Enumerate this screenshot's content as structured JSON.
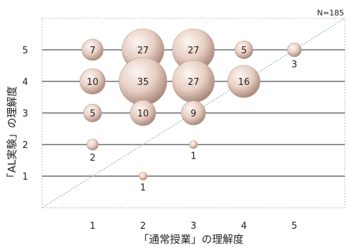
{
  "chart_data": {
    "type": "bubble",
    "note": "N=185",
    "xlabel": "「通常授業」の理解度",
    "ylabel": "「AL実験」の理解度",
    "xlim": [
      0,
      6
    ],
    "ylim": [
      0,
      6
    ],
    "x_ticks": [
      "1",
      "2",
      "3",
      "4",
      "5"
    ],
    "y_ticks": [
      "1",
      "2",
      "3",
      "4",
      "5"
    ],
    "gridlines": "horizontal",
    "diagonal_reference_line": true,
    "points": [
      {
        "x": 1,
        "y": 5,
        "n": 7,
        "label": "7",
        "label_pos": "inside"
      },
      {
        "x": 2,
        "y": 5,
        "n": 27,
        "label": "27",
        "label_pos": "inside"
      },
      {
        "x": 3,
        "y": 5,
        "n": 27,
        "label": "27",
        "label_pos": "inside"
      },
      {
        "x": 4,
        "y": 5,
        "n": 5,
        "label": "5",
        "label_pos": "inside"
      },
      {
        "x": 5,
        "y": 5,
        "n": 3,
        "label": "3",
        "label_pos": "below"
      },
      {
        "x": 1,
        "y": 4,
        "n": 10,
        "label": "10",
        "label_pos": "inside"
      },
      {
        "x": 2,
        "y": 4,
        "n": 35,
        "label": "35",
        "label_pos": "inside"
      },
      {
        "x": 3,
        "y": 4,
        "n": 27,
        "label": "27",
        "label_pos": "inside"
      },
      {
        "x": 4,
        "y": 4,
        "n": 16,
        "label": "16",
        "label_pos": "inside"
      },
      {
        "x": 1,
        "y": 3,
        "n": 5,
        "label": "5",
        "label_pos": "inside"
      },
      {
        "x": 2,
        "y": 3,
        "n": 10,
        "label": "10",
        "label_pos": "inside"
      },
      {
        "x": 3,
        "y": 3,
        "n": 9,
        "label": "9",
        "label_pos": "inside"
      },
      {
        "x": 1,
        "y": 2,
        "n": 2,
        "label": "2",
        "label_pos": "below"
      },
      {
        "x": 3,
        "y": 2,
        "n": 1,
        "label": "1",
        "label_pos": "below"
      },
      {
        "x": 2,
        "y": 1,
        "n": 1,
        "label": "1",
        "label_pos": "below"
      }
    ],
    "colors": {
      "bubble_light": "#fdf6f2",
      "bubble_mid": "#e8cfc4",
      "bubble_dark": "#a9877a",
      "gridline": "#222222",
      "diagonal": "#7fa7b8",
      "frame": "#bbbbbb"
    }
  }
}
